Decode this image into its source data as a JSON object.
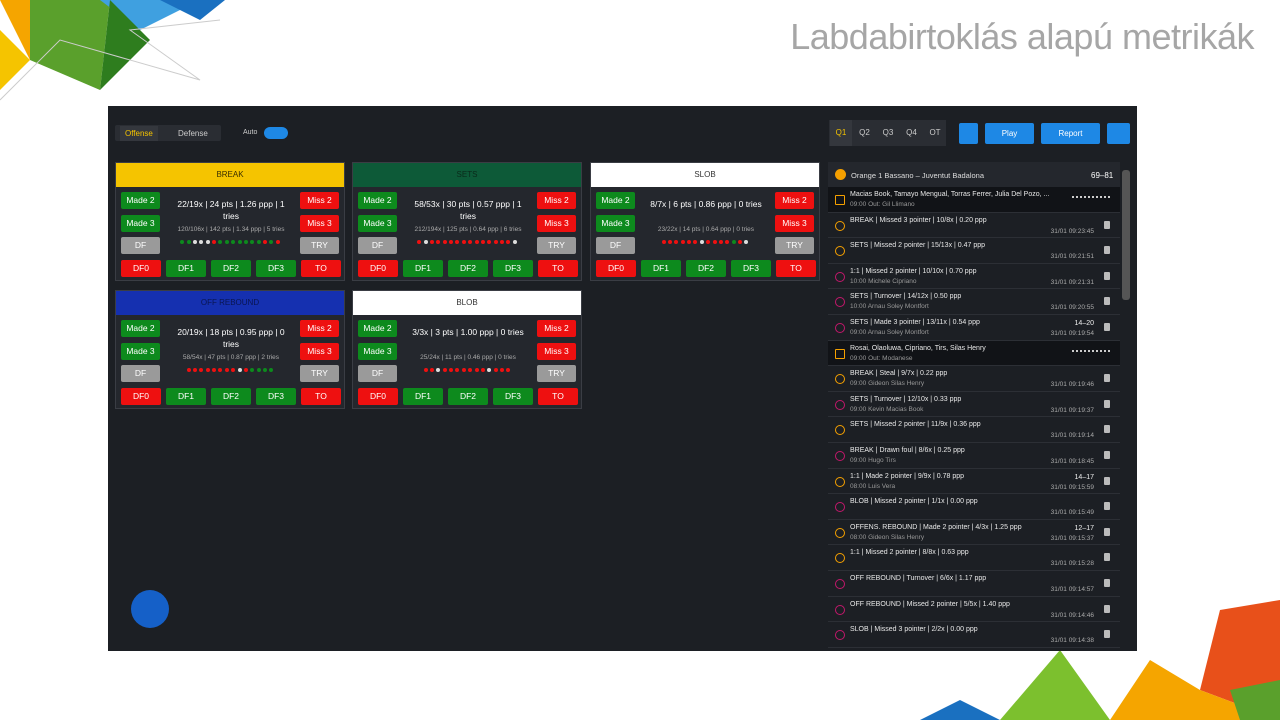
{
  "slide_title": "Labdabirtoklás alapú metrikák",
  "toolbar": {
    "tabs": [
      "Offense",
      "Defense"
    ],
    "auto_label": "Auto",
    "quarters": [
      "Q1",
      "Q2",
      "Q3",
      "Q4",
      "OT"
    ],
    "play": "Play",
    "report": "Report"
  },
  "card_buttons": {
    "left": [
      "Made 2",
      "Made 3",
      "DF"
    ],
    "right": [
      "Miss 2",
      "Miss 3",
      "TRY"
    ],
    "bottom": [
      "DF0",
      "DF1",
      "DF2",
      "DF3",
      "TO"
    ]
  },
  "cards": [
    {
      "title": "BREAK",
      "color": "#f5c400",
      "title_color": "#3a3000",
      "main": "22/19x | 24 pts | 1.26 ppp | 1 tries",
      "sub": "120/106x | 142 pts | 1.34 ppp | 5 tries"
    },
    {
      "title": "SETS",
      "color": "#0d5a38",
      "title_color": "#0a2a1a",
      "main": "58/53x | 30 pts | 0.57 ppp | 1 tries",
      "sub": "212/194x | 125 pts | 0.64 ppp | 6 tries"
    },
    {
      "title": "SLOB",
      "color": "#ffffff",
      "title_color": "#333333",
      "main": "8/7x | 6 pts | 0.86 ppp | 0 tries",
      "sub": "23/22x | 14 pts | 0.64 ppp | 0 tries"
    },
    {
      "title": "OFF REBOUND",
      "color": "#1530b0",
      "title_color": "#0a1550",
      "main": "20/19x | 18 pts | 0.95 ppp | 0 tries",
      "sub": "58/54x | 47 pts | 0.87 ppp | 2 tries"
    },
    {
      "title": "BLOB",
      "color": "#ffffff",
      "title_color": "#333333",
      "main": "3/3x | 3 pts | 1.00 ppp | 0 tries",
      "sub": "25/24x | 11 pts | 0.46 ppp | 0 tries"
    }
  ],
  "game": {
    "title": "Orange 1 Bassano – Juventut Badalona",
    "score": "69–81"
  },
  "events": [
    {
      "text": "Macias Book, Tamayo Mengual, Torras Ferrer, Julia Del Pozo, ...",
      "detail": "09:00 Out: Gil Llimano"
    },
    {
      "text": "BREAK | Missed 3 pointer | 10/8x | 0.20 ppp",
      "time": "31/01 09:23:45"
    },
    {
      "text": "SETS | Missed 2 pointer | 15/13x | 0.47 ppp",
      "time": "31/01 09:21:51"
    },
    {
      "text": "1:1 | Missed 2 pointer | 10/10x | 0.70 ppp",
      "detail": "10:00 Michele Cipriano",
      "time": "31/01 09:21:31"
    },
    {
      "text": "SETS | Turnover | 14/12x | 0.50 ppp",
      "detail": "10:00 Arnau Soley Montfort",
      "time": "31/01 09:20:55"
    },
    {
      "text": "SETS | Made 3 pointer | 13/11x | 0.54 ppp",
      "detail": "09:00 Arnau Soley Montfort",
      "time": "31/01 09:19:54",
      "score": "14–20"
    },
    {
      "text": "Rosai, Olaoluwa, Cipriano, Tirs, Silas Henry",
      "detail": "09:00 Out: Modanese"
    },
    {
      "text": "BREAK | Steal | 9/7x | 0.22 ppp",
      "detail": "09:00 Gideon Silas Henry",
      "time": "31/01 09:19:46"
    },
    {
      "text": "SETS | Turnover | 12/10x | 0.33 ppp",
      "detail": "09:00 Kevin Macias Book",
      "time": "31/01 09:19:37"
    },
    {
      "text": "SETS | Missed 2 pointer | 11/9x | 0.36 ppp",
      "time": "31/01 09:19:14"
    },
    {
      "text": "BREAK | Drawn foul | 8/6x | 0.25 ppp",
      "detail": "09:00 Hugo Tirs",
      "time": "31/01 09:18:45"
    },
    {
      "text": "1:1 | Made 2 pointer | 9/9x | 0.78 ppp",
      "detail": "08:00 Luis Vera",
      "time": "31/01 09:15:59",
      "score": "14–17"
    },
    {
      "text": "BLOB | Missed 2 pointer | 1/1x | 0.00 ppp",
      "time": "31/01 09:15:49"
    },
    {
      "text": "OFFENS. REBOUND | Made 2 pointer | 4/3x | 1.25 ppp",
      "detail": "08:00 Gideon Silas Henry",
      "time": "31/01 09:15:37",
      "score": "12–17"
    },
    {
      "text": "1:1 | Missed 2 pointer | 8/8x | 0.63 ppp",
      "time": "31/01 09:15:28"
    },
    {
      "text": "OFF REBOUND | Turnover | 6/6x | 1.17 ppp",
      "time": "31/01 09:14:57"
    },
    {
      "text": "OFF REBOUND | Missed 2 pointer | 5/5x | 1.40 ppp",
      "time": "31/01 09:14:46"
    },
    {
      "text": "SLOB | Missed 3 pointer | 2/2x | 0.00 ppp",
      "time": "31/01 09:14:38"
    }
  ]
}
